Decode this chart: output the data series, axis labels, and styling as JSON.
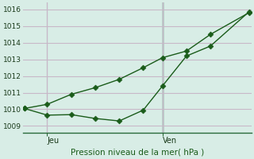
{
  "title": "Pression niveau de la mer( hPa )",
  "bg_color": "#d8ede6",
  "plot_bg_color": "#d8ede6",
  "grid_color": "#c8b8c8",
  "line_color": "#1a5c1a",
  "xlim": [
    0,
    9.5
  ],
  "ylim": [
    1008.6,
    1016.4
  ],
  "yticks": [
    1009,
    1010,
    1011,
    1012,
    1013,
    1014,
    1015,
    1016
  ],
  "jeu_x": 1.0,
  "ven_x": 5.8,
  "line1_x": [
    0.05,
    1.0,
    2.0,
    3.0,
    4.0,
    5.0,
    5.8,
    6.8,
    7.8,
    9.4
  ],
  "line1_y": [
    1010.05,
    1010.3,
    1010.9,
    1011.3,
    1011.8,
    1012.5,
    1013.1,
    1013.5,
    1014.5,
    1015.8
  ],
  "line2_x": [
    0.05,
    1.0,
    2.0,
    3.0,
    4.0,
    5.0,
    5.8,
    6.8,
    7.8,
    9.4
  ],
  "line2_y": [
    1010.05,
    1009.65,
    1009.68,
    1009.45,
    1009.3,
    1009.95,
    1011.4,
    1013.2,
    1013.8,
    1015.85
  ]
}
